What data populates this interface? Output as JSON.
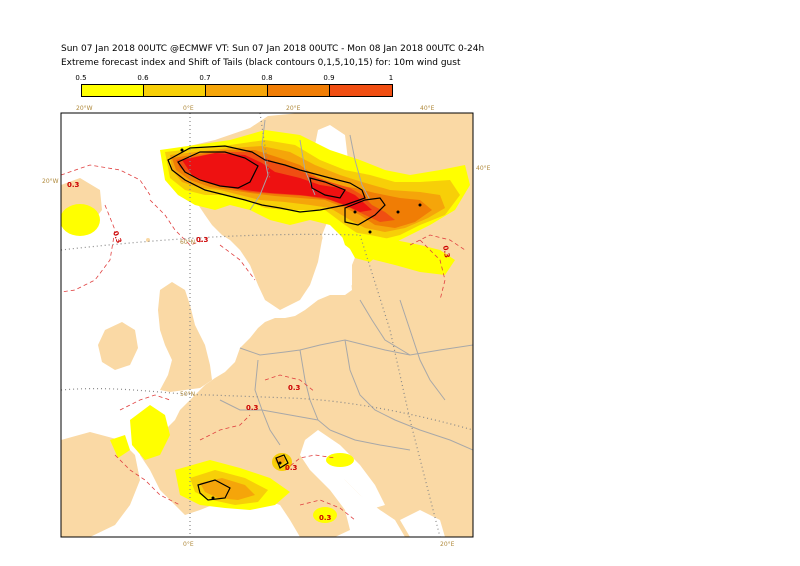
{
  "title_line1": "Sun 07 Jan 2018 00UTC @ECMWF VT: Sun 07 Jan 2018 00UTC - Mon 08 Jan 2018 00UTC  0-24h",
  "title_line2": "Extreme forecast index and Shift of Tails (black contours 0,1,5,10,15) for: 10m wind gust",
  "legend": {
    "labels": [
      "0.5",
      "0.6",
      "0.7",
      "0.8",
      "0.9",
      "1"
    ],
    "colors": [
      "#ffff00",
      "#f7cf08",
      "#f5a50a",
      "#f07d05",
      "#f04e12",
      "#ee1111"
    ]
  },
  "colors": {
    "land": "#fad9a5",
    "sea": "#ffffff",
    "border": "#a8a8a8",
    "contour_03": "#e04040",
    "contour_black": "#000000"
  },
  "coord_labels": {
    "top_20w": "20°W",
    "top_0e": "0°E",
    "top_20e": "20°E",
    "top_40e": "40°E",
    "right_40e": "40°E",
    "left_20w": "20°W",
    "lat_60n": "60°N",
    "lat_50n": "50°N",
    "bottom_0e": "0°E",
    "bottom_20e": "20°E"
  },
  "isoline_label": "0.3"
}
